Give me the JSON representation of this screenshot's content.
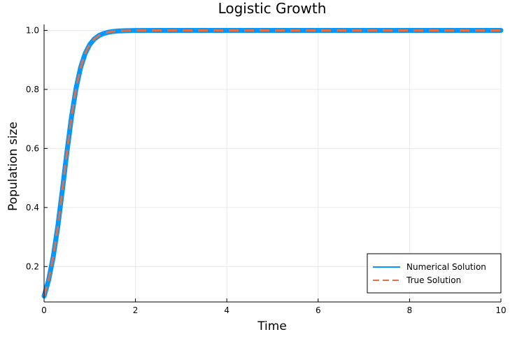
{
  "chart_data": {
    "type": "line",
    "title": "Logistic Growth",
    "xlabel": "Time",
    "ylabel": "Population size",
    "xlim": [
      0,
      10
    ],
    "ylim": [
      0.08,
      1.02
    ],
    "xticks": [
      0,
      2,
      4,
      6,
      8,
      10
    ],
    "xtick_labels": [
      "0",
      "2",
      "4",
      "6",
      "8",
      "10"
    ],
    "yticks": [
      0.2,
      0.4,
      0.6,
      0.8,
      1.0
    ],
    "ytick_labels": [
      "0.2",
      "0.4",
      "0.6",
      "0.8",
      "1.0"
    ],
    "grid": true,
    "legend_position": "bottom-right",
    "series": [
      {
        "name": "Numerical Solution",
        "color": "#0099ff",
        "style": "solid",
        "x": [
          0,
          0.1,
          0.2,
          0.3,
          0.4,
          0.5,
          0.6,
          0.7,
          0.8,
          0.9,
          1.0,
          1.1,
          1.2,
          1.3,
          1.4,
          1.5,
          1.6,
          1.8,
          2.0,
          2.5,
          3,
          4,
          5,
          6,
          7,
          8,
          9,
          10
        ],
        "y": [
          0.1,
          0.1548,
          0.2325,
          0.3354,
          0.4582,
          0.5874,
          0.7064,
          0.8034,
          0.8744,
          0.9219,
          0.9521,
          0.9708,
          0.9823,
          0.9893,
          0.9935,
          0.9961,
          0.9977,
          0.9991,
          0.9997,
          1.0,
          1.0,
          1.0,
          1.0,
          1.0,
          1.0,
          1.0,
          1.0,
          1.0
        ]
      },
      {
        "name": "True Solution",
        "color": "#e26f46",
        "style": "dashed",
        "x": [
          0,
          0.1,
          0.2,
          0.3,
          0.4,
          0.5,
          0.6,
          0.7,
          0.8,
          0.9,
          1.0,
          1.1,
          1.2,
          1.3,
          1.4,
          1.5,
          1.6,
          1.8,
          2.0,
          2.5,
          3,
          4,
          5,
          6,
          7,
          8,
          9,
          10
        ],
        "y": [
          0.1,
          0.1548,
          0.2325,
          0.3354,
          0.4582,
          0.5874,
          0.7064,
          0.8034,
          0.8744,
          0.9219,
          0.9521,
          0.9708,
          0.9823,
          0.9893,
          0.9935,
          0.9961,
          0.9977,
          0.9991,
          0.9997,
          1.0,
          1.0,
          1.0,
          1.0,
          1.0,
          1.0,
          1.0,
          1.0,
          1.0
        ]
      }
    ]
  }
}
